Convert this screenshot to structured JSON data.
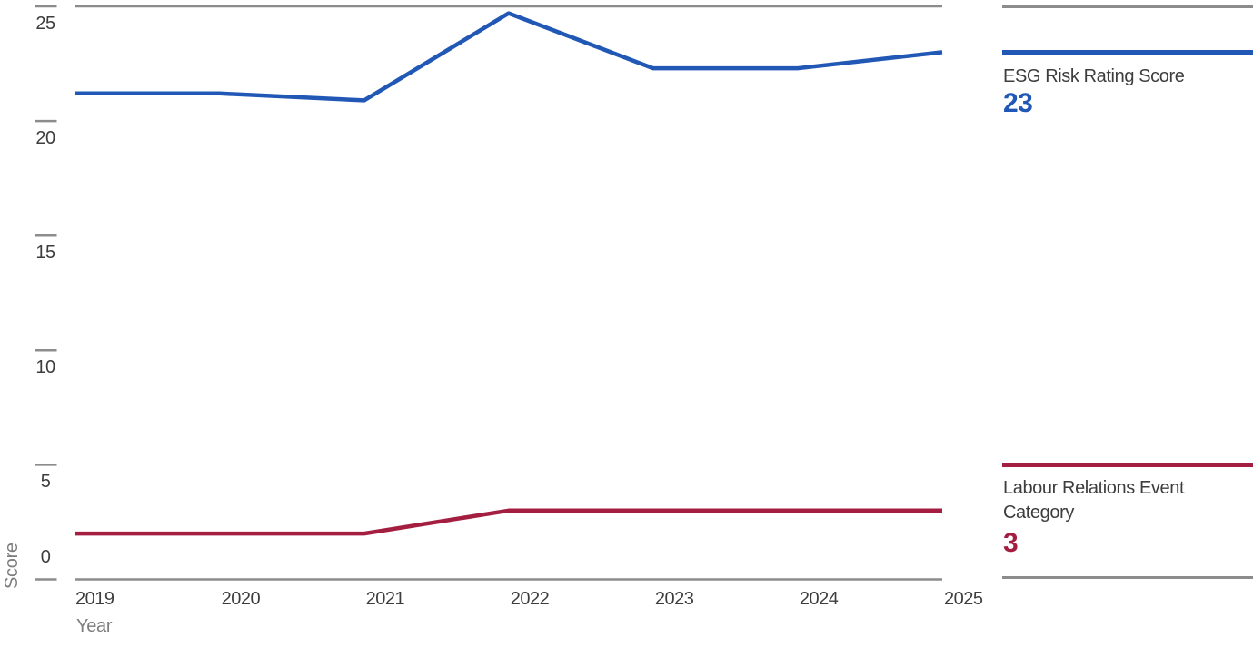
{
  "chart_data": {
    "type": "line",
    "x": [
      2019,
      2020,
      2021,
      2022,
      2023,
      2024,
      2025
    ],
    "series": [
      {
        "name": "ESG Risk Rating Score",
        "values": [
          21.2,
          21.2,
          20.9,
          24.7,
          22.3,
          22.3,
          23.0
        ],
        "current_value": "23",
        "color": "#2158b5"
      },
      {
        "name": "Labour Relations Event Category",
        "values": [
          2,
          2,
          2,
          3,
          3,
          3,
          3
        ],
        "current_value": "3",
        "color": "#a41e41"
      }
    ],
    "xlabel": "Year",
    "ylabel": "Score",
    "yticks": [
      0,
      5,
      10,
      15,
      20,
      25
    ],
    "ylim": [
      0,
      25
    ],
    "grid": "horizontal rule at top tick and baseline only; short left tick dashes; no vertical gridlines",
    "legend_position": "right"
  },
  "colors": {
    "series_blue": "#2158b5",
    "series_red": "#a41e41",
    "rule_gray": "#8c8c8c",
    "tick_label": "#3d3d3d",
    "axis_title": "#7d7d7d",
    "background": "#ffffff"
  }
}
